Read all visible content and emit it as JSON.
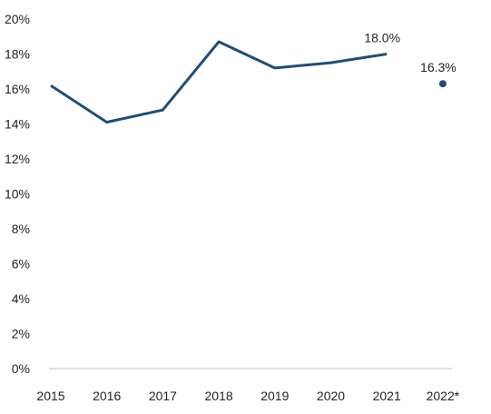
{
  "chart_data": {
    "type": "line",
    "x": [
      "2015",
      "2016",
      "2017",
      "2018",
      "2019",
      "2020",
      "2021",
      "2022*"
    ],
    "series": [
      {
        "values": [
          16.2,
          14.1,
          14.8,
          18.7,
          17.2,
          17.5,
          18.0,
          null
        ]
      },
      {
        "values": [
          null,
          null,
          null,
          null,
          null,
          null,
          null,
          16.3
        ]
      }
    ],
    "data_labels": [
      {
        "x": "2021",
        "y": 18.0,
        "text": "18.0%"
      },
      {
        "x": "2022*",
        "y": 16.3,
        "text": "16.3%"
      }
    ],
    "yticks": [
      "0%",
      "2%",
      "4%",
      "6%",
      "8%",
      "10%",
      "12%",
      "14%",
      "16%",
      "18%",
      "20%"
    ],
    "ylim": [
      0,
      20
    ],
    "grid": false,
    "title": "",
    "xlabel": "",
    "ylabel": "",
    "colors": {
      "line": "#1f4e79",
      "axis": "#bfbfbf"
    }
  }
}
